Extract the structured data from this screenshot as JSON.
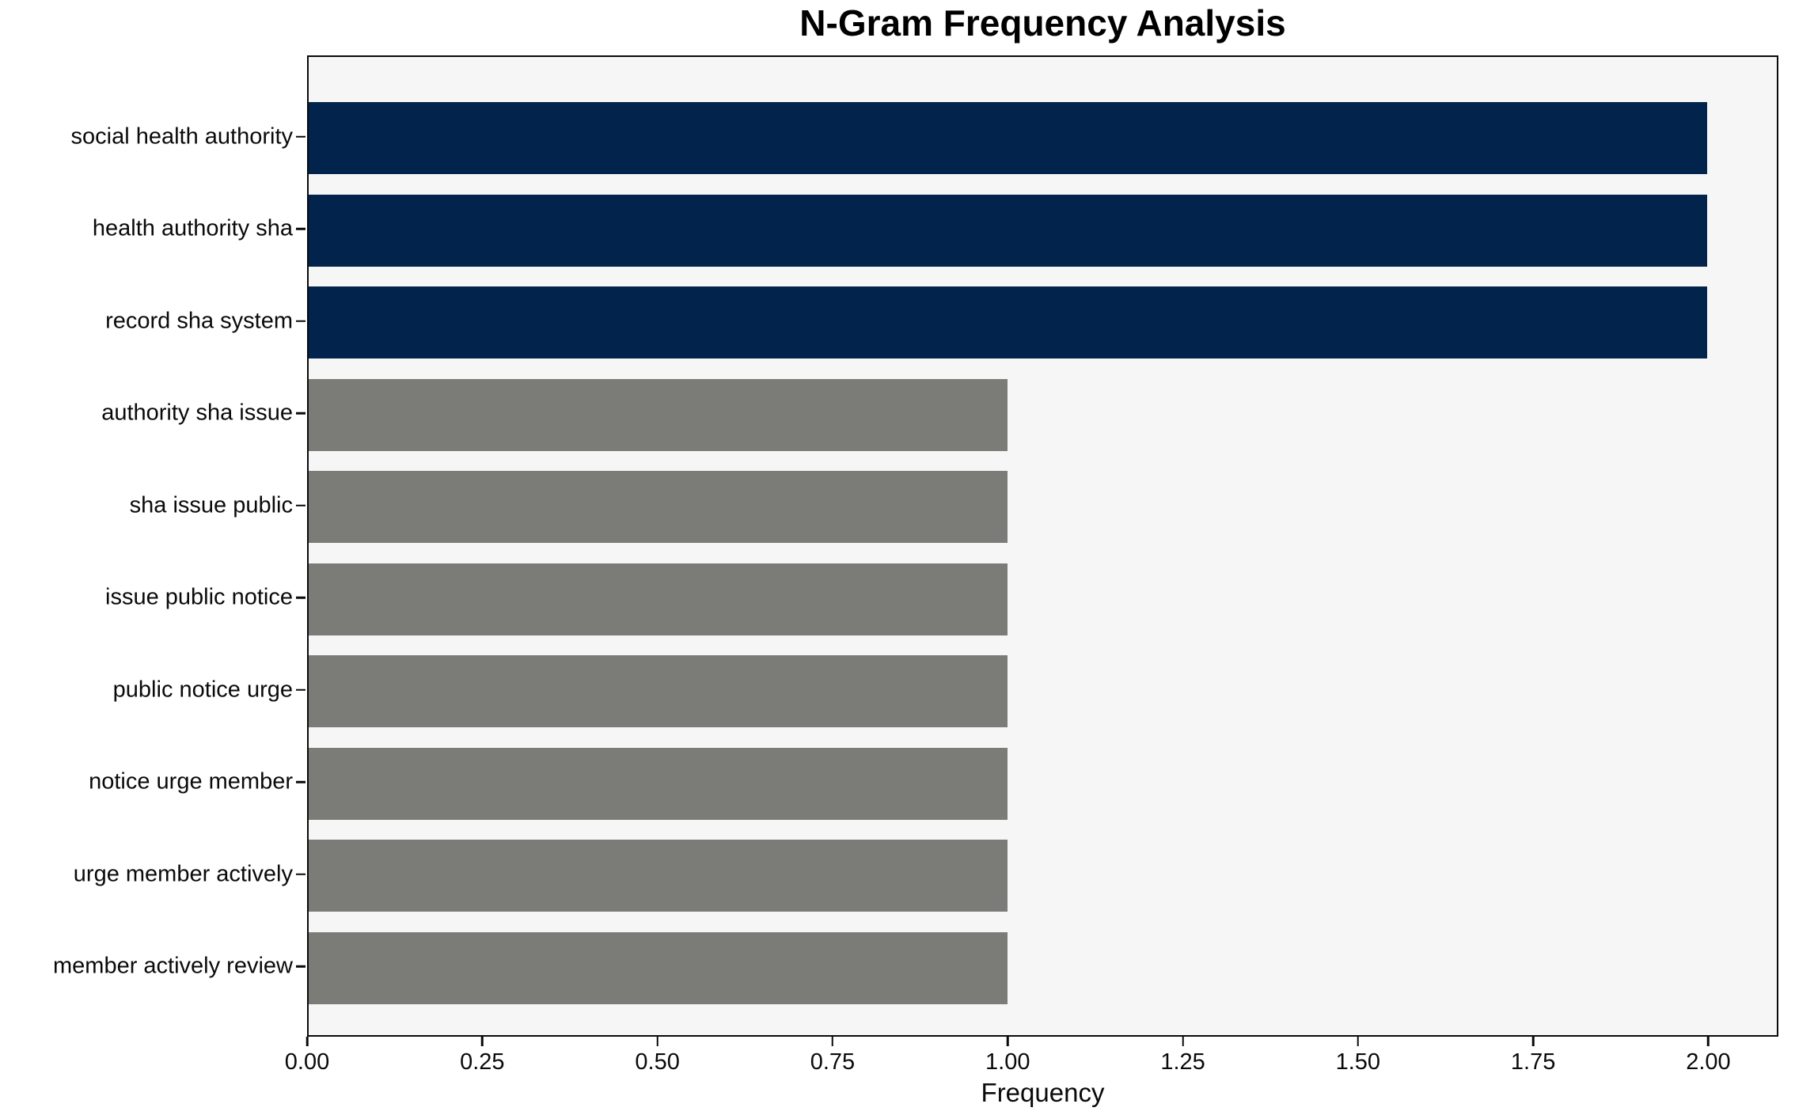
{
  "chart_data": {
    "type": "bar",
    "orientation": "horizontal",
    "title": "N-Gram Frequency Analysis",
    "xlabel": "Frequency",
    "ylabel": "",
    "categories": [
      "social health authority",
      "health authority sha",
      "record sha system",
      "authority sha issue",
      "sha issue public",
      "issue public notice",
      "public notice urge",
      "notice urge member",
      "urge member actively",
      "member actively review"
    ],
    "values": [
      2,
      2,
      2,
      1,
      1,
      1,
      1,
      1,
      1,
      1
    ],
    "bar_colors": [
      "#02234c",
      "#02234c",
      "#02234c",
      "#7b7b77",
      "#7b7b77",
      "#7b7b77",
      "#7b7b77",
      "#7b7b77",
      "#7b7b77",
      "#7b7b77"
    ],
    "xlim": [
      0,
      2.1
    ],
    "xticks": [
      0,
      0.25,
      0.5,
      0.75,
      1.0,
      1.25,
      1.5,
      1.75,
      2.0
    ],
    "xtick_labels": [
      "0.00",
      "0.25",
      "0.50",
      "0.75",
      "1.00",
      "1.25",
      "1.50",
      "1.75",
      "2.00"
    ],
    "grid": false,
    "legend": null,
    "colors": {
      "highlight": "#02234c",
      "default": "#7b7b77",
      "plot_background": "#f6f6f7",
      "figure_background": "#ffffff",
      "spine": "#0a0a0a",
      "text": "#000000"
    }
  }
}
